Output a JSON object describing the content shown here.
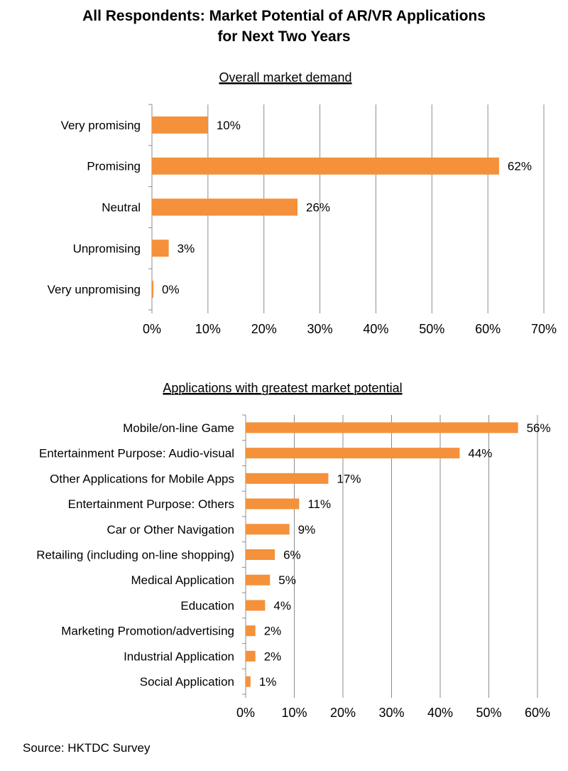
{
  "title_line1": "All Respondents: Market Potential of AR/VR Applications",
  "title_line2": "for Next Two Years",
  "source": "Source: HKTDC Survey",
  "colors": {
    "bar": "#F4913A",
    "grid": "#8c8c8c"
  },
  "chart_data": [
    {
      "type": "bar",
      "orientation": "horizontal",
      "title": "Overall market demand",
      "categories": [
        "Very promising",
        "Promising",
        "Neutral",
        "Unpromising",
        "Very unpromising"
      ],
      "values": [
        10,
        62,
        26,
        3,
        0
      ],
      "value_labels": [
        "10%",
        "62%",
        "26%",
        "3%",
        "0%"
      ],
      "xlim": [
        0,
        70
      ],
      "ticks": [
        "0%",
        "10%",
        "20%",
        "30%",
        "40%",
        "50%",
        "60%",
        "70%"
      ],
      "grid": true
    },
    {
      "type": "bar",
      "orientation": "horizontal",
      "title": "Applications with greatest market potential",
      "categories": [
        "Mobile/on-line Game",
        "Entertainment Purpose: Audio-visual",
        "Other Applications for Mobile Apps",
        "Entertainment Purpose: Others",
        "Car or Other Navigation",
        "Retailing (including on-line shopping)",
        "Medical Application",
        "Education",
        "Marketing Promotion/advertising",
        "Industrial Application",
        "Social Application"
      ],
      "values": [
        56,
        44,
        17,
        11,
        9,
        6,
        5,
        4,
        2,
        2,
        1
      ],
      "value_labels": [
        "56%",
        "44%",
        "17%",
        "11%",
        "9%",
        "6%",
        "5%",
        "4%",
        "2%",
        "2%",
        "1%"
      ],
      "xlim": [
        0,
        60
      ],
      "ticks": [
        "0%",
        "10%",
        "20%",
        "30%",
        "40%",
        "50%",
        "60%"
      ],
      "grid": true
    }
  ]
}
